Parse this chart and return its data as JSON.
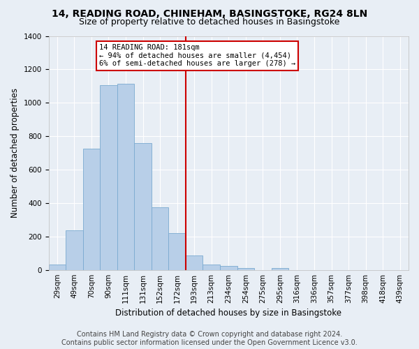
{
  "title1": "14, READING ROAD, CHINEHAM, BASINGSTOKE, RG24 8LN",
  "title2": "Size of property relative to detached houses in Basingstoke",
  "xlabel": "Distribution of detached houses by size in Basingstoke",
  "ylabel": "Number of detached properties",
  "footer1": "Contains HM Land Registry data © Crown copyright and database right 2024.",
  "footer2": "Contains public sector information licensed under the Open Government Licence v3.0.",
  "annotation_line1": "14 READING ROAD: 181sqm",
  "annotation_line2": "← 94% of detached houses are smaller (4,454)",
  "annotation_line3": "6% of semi-detached houses are larger (278) →",
  "bar_labels": [
    "29sqm",
    "49sqm",
    "70sqm",
    "90sqm",
    "111sqm",
    "131sqm",
    "152sqm",
    "172sqm",
    "193sqm",
    "213sqm",
    "234sqm",
    "254sqm",
    "275sqm",
    "295sqm",
    "316sqm",
    "336sqm",
    "357sqm",
    "377sqm",
    "398sqm",
    "418sqm",
    "439sqm"
  ],
  "hist_values": [
    30,
    235,
    725,
    1105,
    1115,
    760,
    375,
    220,
    85,
    30,
    25,
    12,
    0,
    10,
    0,
    0,
    0,
    0,
    0,
    0,
    0
  ],
  "bar_color": "#b8cfe8",
  "bar_edge_color": "#7aaad0",
  "vline_x_bin": 7,
  "vline_color": "#cc0000",
  "ylim": [
    0,
    1400
  ],
  "yticks": [
    0,
    200,
    400,
    600,
    800,
    1000,
    1200,
    1400
  ],
  "background_color": "#e8eef5",
  "grid_color": "#ffffff",
  "annotation_box_color": "#cc0000",
  "title_fontsize": 10,
  "subtitle_fontsize": 9,
  "axis_label_fontsize": 8.5,
  "tick_fontsize": 7.5,
  "footer_fontsize": 7
}
